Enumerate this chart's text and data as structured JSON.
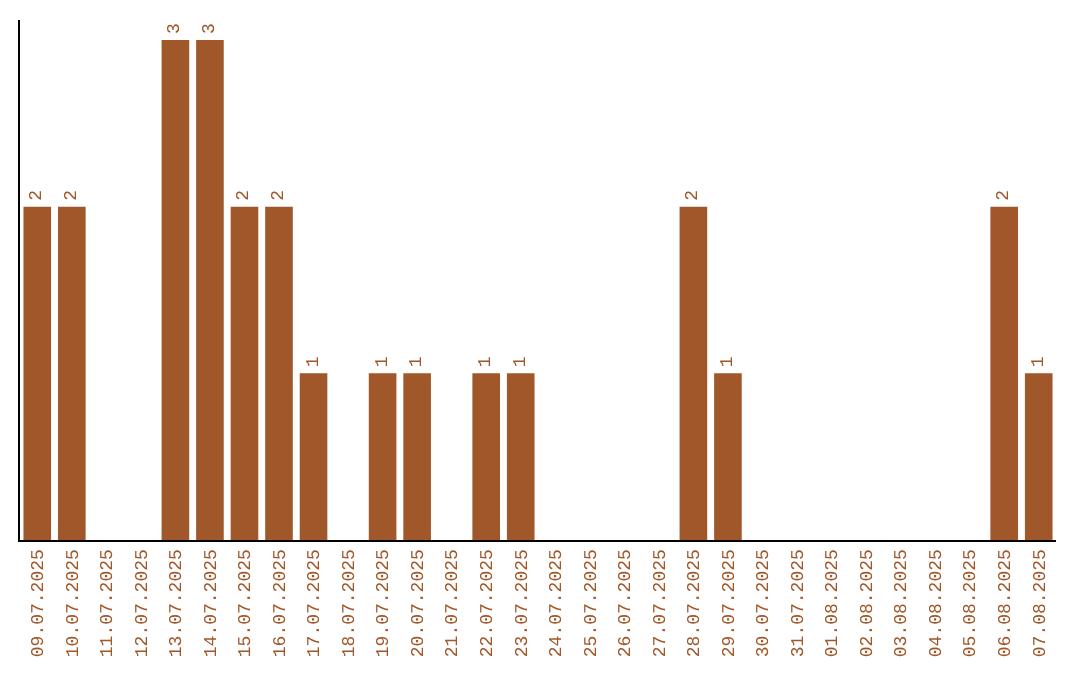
{
  "chart_data": {
    "type": "bar",
    "categories": [
      "09.07.2025",
      "10.07.2025",
      "11.07.2025",
      "12.07.2025",
      "13.07.2025",
      "14.07.2025",
      "15.07.2025",
      "16.07.2025",
      "17.07.2025",
      "18.07.2025",
      "19.07.2025",
      "20.07.2025",
      "21.07.2025",
      "22.07.2025",
      "23.07.2025",
      "24.07.2025",
      "25.07.2025",
      "26.07.2025",
      "27.07.2025",
      "28.07.2025",
      "29.07.2025",
      "30.07.2025",
      "31.07.2025",
      "01.08.2025",
      "02.08.2025",
      "03.08.2025",
      "04.08.2025",
      "05.08.2025",
      "06.08.2025",
      "07.08.2025"
    ],
    "values": [
      2,
      2,
      0,
      0,
      3,
      3,
      2,
      2,
      1,
      0,
      1,
      1,
      0,
      1,
      1,
      0,
      0,
      0,
      0,
      2,
      1,
      0,
      0,
      0,
      0,
      0,
      0,
      0,
      2,
      1
    ],
    "value_labels": [
      "2",
      "2",
      null,
      null,
      "3",
      "3",
      "2",
      "2",
      "1",
      null,
      "1",
      "1",
      null,
      "1",
      "1",
      null,
      null,
      null,
      null,
      "2",
      "1",
      null,
      null,
      null,
      null,
      null,
      null,
      null,
      "2",
      "1"
    ],
    "color": "#a0582a",
    "ylim": [
      0,
      3.12
    ]
  }
}
